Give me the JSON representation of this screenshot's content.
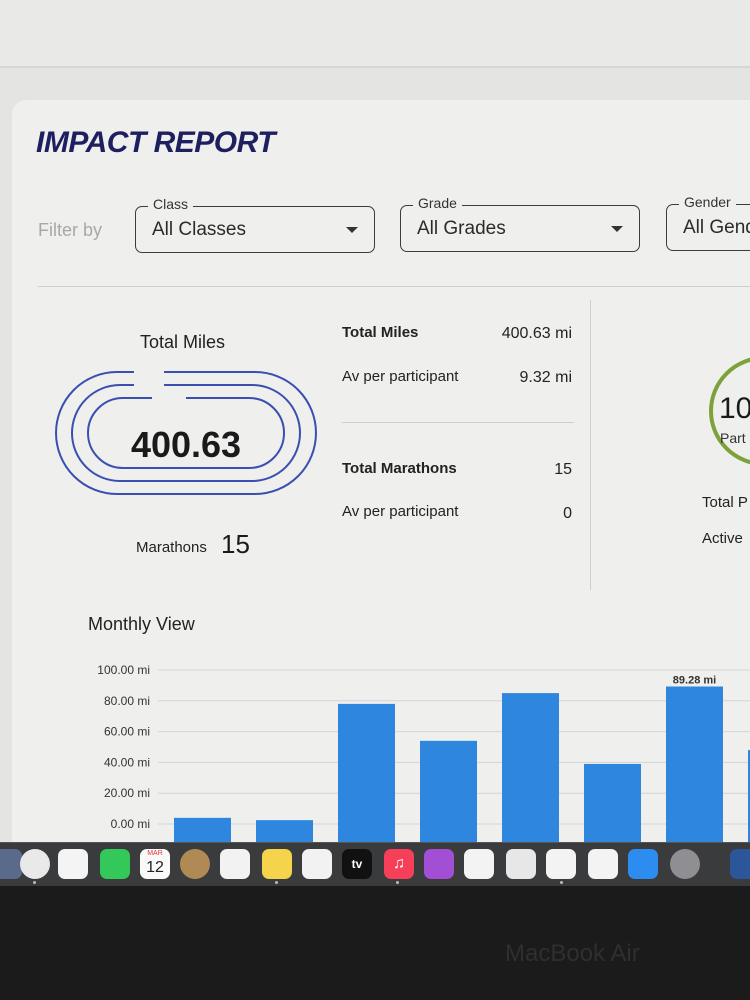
{
  "report": {
    "title": "IMPACT REPORT",
    "filter_label": "Filter by",
    "filters": [
      {
        "legend": "Class",
        "value": "All Classes"
      },
      {
        "legend": "Grade",
        "value": "All Grades"
      },
      {
        "legend": "Gender",
        "value": "All Gend"
      }
    ]
  },
  "summary": {
    "total_miles_label": "Total Miles",
    "total_miles_value": "400.63",
    "marathons_label": "Marathons",
    "marathons_value": "15"
  },
  "stats": {
    "miles_label": "Total Miles",
    "miles_value": "400.63 mi",
    "miles_avg_label": "Av per participant",
    "miles_avg_value": "9.32 mi",
    "marathons_label": "Total Marathons",
    "marathons_value": "15",
    "marathons_avg_label": "Av per participant",
    "marathons_avg_value": "0"
  },
  "participants": {
    "ring_value": "10",
    "ring_label": "Part",
    "total_label": "Total P",
    "active_label": "Active"
  },
  "monthly": {
    "label": "Monthly View"
  },
  "chart_data": {
    "type": "bar",
    "title": "Monthly View",
    "y_ticks": [
      "100.00 mi",
      "80.00 mi",
      "60.00 mi",
      "40.00 mi",
      "20.00 mi",
      "0.00 mi"
    ],
    "ylim": [
      0,
      100
    ],
    "values": [
      4,
      2.5,
      78,
      54,
      85,
      39,
      89.28,
      48
    ],
    "data_labels": [
      "",
      "",
      "",
      "",
      "",
      "",
      "89.28 mi",
      ""
    ],
    "bar_color": "#2f86df",
    "grid": true
  },
  "dock": {
    "calendar_month": "MAR",
    "calendar_day": "12",
    "tv_label": "tv"
  },
  "device": {
    "brand": "MacBook Air"
  }
}
